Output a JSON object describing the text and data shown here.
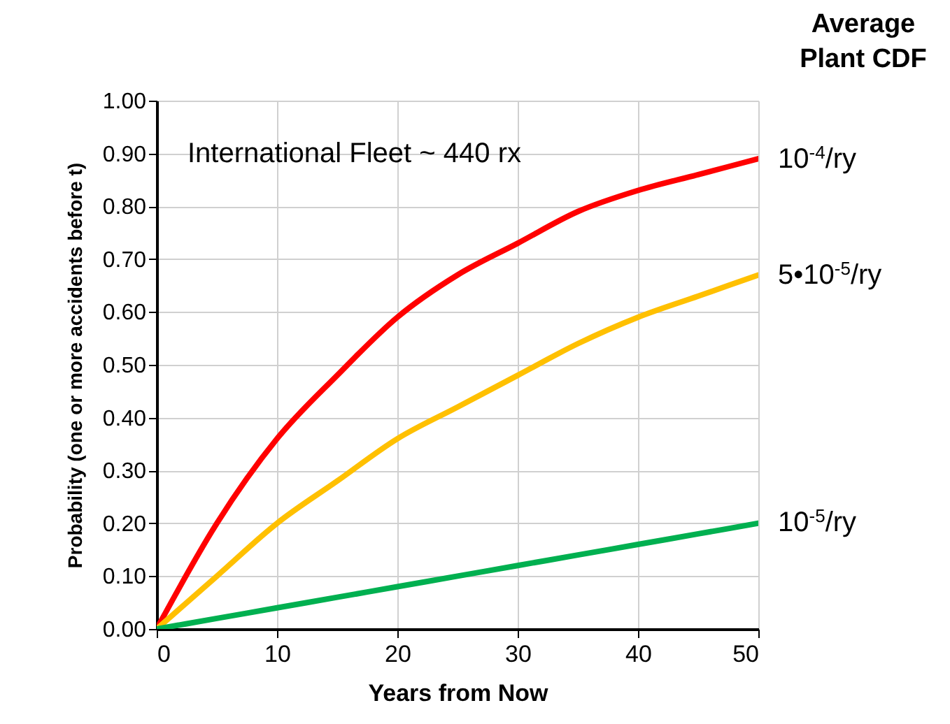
{
  "chart_data": {
    "type": "line",
    "xlabel": "Years from Now",
    "ylabel": "Probability (one or more accidents before t)",
    "legend_title": "Average Plant CDF",
    "annotations": [
      "International Fleet ~ 440 rx"
    ],
    "x": [
      0,
      5,
      10,
      15,
      20,
      25,
      30,
      35,
      40,
      45,
      50
    ],
    "series": [
      {
        "name": "10$^{-4}$/ry",
        "color": "#ff0000",
        "values": [
          0,
          0.2,
          0.36,
          0.48,
          0.59,
          0.67,
          0.73,
          0.79,
          0.83,
          0.86,
          0.89
        ]
      },
      {
        "name": "5•10$^{-5}$/ry",
        "color": "#ffc000",
        "values": [
          0,
          0.1,
          0.2,
          0.28,
          0.36,
          0.42,
          0.48,
          0.54,
          0.59,
          0.63,
          0.67
        ]
      },
      {
        "name": "10$^{-5}$/ry",
        "color": "#00b050",
        "values": [
          0,
          0.02,
          0.04,
          0.06,
          0.08,
          0.1,
          0.12,
          0.14,
          0.16,
          0.18,
          0.2
        ]
      }
    ],
    "xlim": [
      0,
      50
    ],
    "xticks": [
      0,
      10,
      20,
      30,
      40,
      50
    ],
    "ylim": [
      0,
      1
    ],
    "yticks": [
      {
        "value": 0,
        "label": "0.00"
      },
      {
        "value": 0.1,
        "label": "0.10"
      },
      {
        "value": 0.2,
        "label": "0.20"
      },
      {
        "value": 0.3,
        "label": "0.30"
      },
      {
        "value": 0.4,
        "label": "0.40"
      },
      {
        "value": 0.5,
        "label": "0.50"
      },
      {
        "value": 0.6,
        "label": "0.60"
      },
      {
        "value": 0.7,
        "label": "0.70"
      },
      {
        "value": 0.8,
        "label": "0.80"
      },
      {
        "value": 0.9,
        "label": "0.90"
      },
      {
        "value": 1,
        "label": "1.00"
      }
    ],
    "grid": true,
    "legend": "right",
    "marker": "none",
    "line_style": "solid"
  }
}
